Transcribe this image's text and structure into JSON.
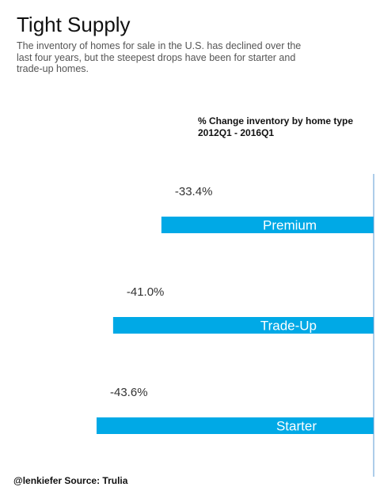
{
  "header": {
    "title": "Tight Supply",
    "subtitle": "The inventory of homes for sale in the U.S. has declined over the last four years, but the steepest drops have been for starter and trade-up homes."
  },
  "chart_data": {
    "type": "bar",
    "orientation": "horizontal",
    "title": "% Change inventory by home type",
    "subtitle": "2012Q1 - 2016Q1",
    "categories": [
      "Premium",
      "Trade-Up",
      "Starter"
    ],
    "values": [
      -33.4,
      -41.0,
      -43.6
    ],
    "value_labels": [
      "-33.4%",
      "-41.0%",
      "-43.6%"
    ],
    "bar_color": "#00A9E6",
    "axis_color": "#5B9BD5",
    "xlim": [
      -43.6,
      0
    ],
    "grid": false,
    "legend": "none"
  },
  "footer": {
    "credit": "@lenkiefer Source: Trulia"
  }
}
